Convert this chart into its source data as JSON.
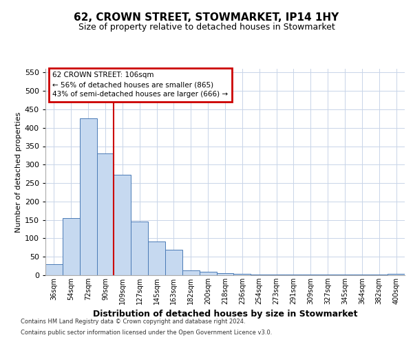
{
  "title1": "62, CROWN STREET, STOWMARKET, IP14 1HY",
  "title2": "Size of property relative to detached houses in Stowmarket",
  "xlabel": "Distribution of detached houses by size in Stowmarket",
  "ylabel": "Number of detached properties",
  "categories": [
    "36sqm",
    "54sqm",
    "72sqm",
    "90sqm",
    "109sqm",
    "127sqm",
    "145sqm",
    "163sqm",
    "182sqm",
    "200sqm",
    "218sqm",
    "236sqm",
    "254sqm",
    "273sqm",
    "291sqm",
    "309sqm",
    "327sqm",
    "345sqm",
    "364sqm",
    "382sqm",
    "400sqm"
  ],
  "values": [
    29,
    155,
    425,
    330,
    272,
    145,
    92,
    70,
    13,
    10,
    5,
    3,
    2,
    1,
    1,
    1,
    1,
    1,
    1,
    1,
    4
  ],
  "bar_color": "#c6d9f0",
  "bar_edge_color": "#4a7ab5",
  "vline_x_index": 4,
  "vline_color": "#cc0000",
  "ylim": [
    0,
    560
  ],
  "yticks": [
    0,
    50,
    100,
    150,
    200,
    250,
    300,
    350,
    400,
    450,
    500,
    550
  ],
  "annotation_box_text": "62 CROWN STREET: 106sqm\n← 56% of detached houses are smaller (865)\n43% of semi-detached houses are larger (666) →",
  "annotation_box_color": "#cc0000",
  "footnote1": "Contains HM Land Registry data © Crown copyright and database right 2024.",
  "footnote2": "Contains public sector information licensed under the Open Government Licence v3.0.",
  "background_color": "#ffffff",
  "grid_color": "#c8d4e8",
  "title1_fontsize": 11,
  "title2_fontsize": 9,
  "ylabel_fontsize": 8,
  "xlabel_fontsize": 9,
  "ytick_fontsize": 8,
  "xtick_fontsize": 7,
  "annot_fontsize": 7.5,
  "footnote_fontsize": 6
}
